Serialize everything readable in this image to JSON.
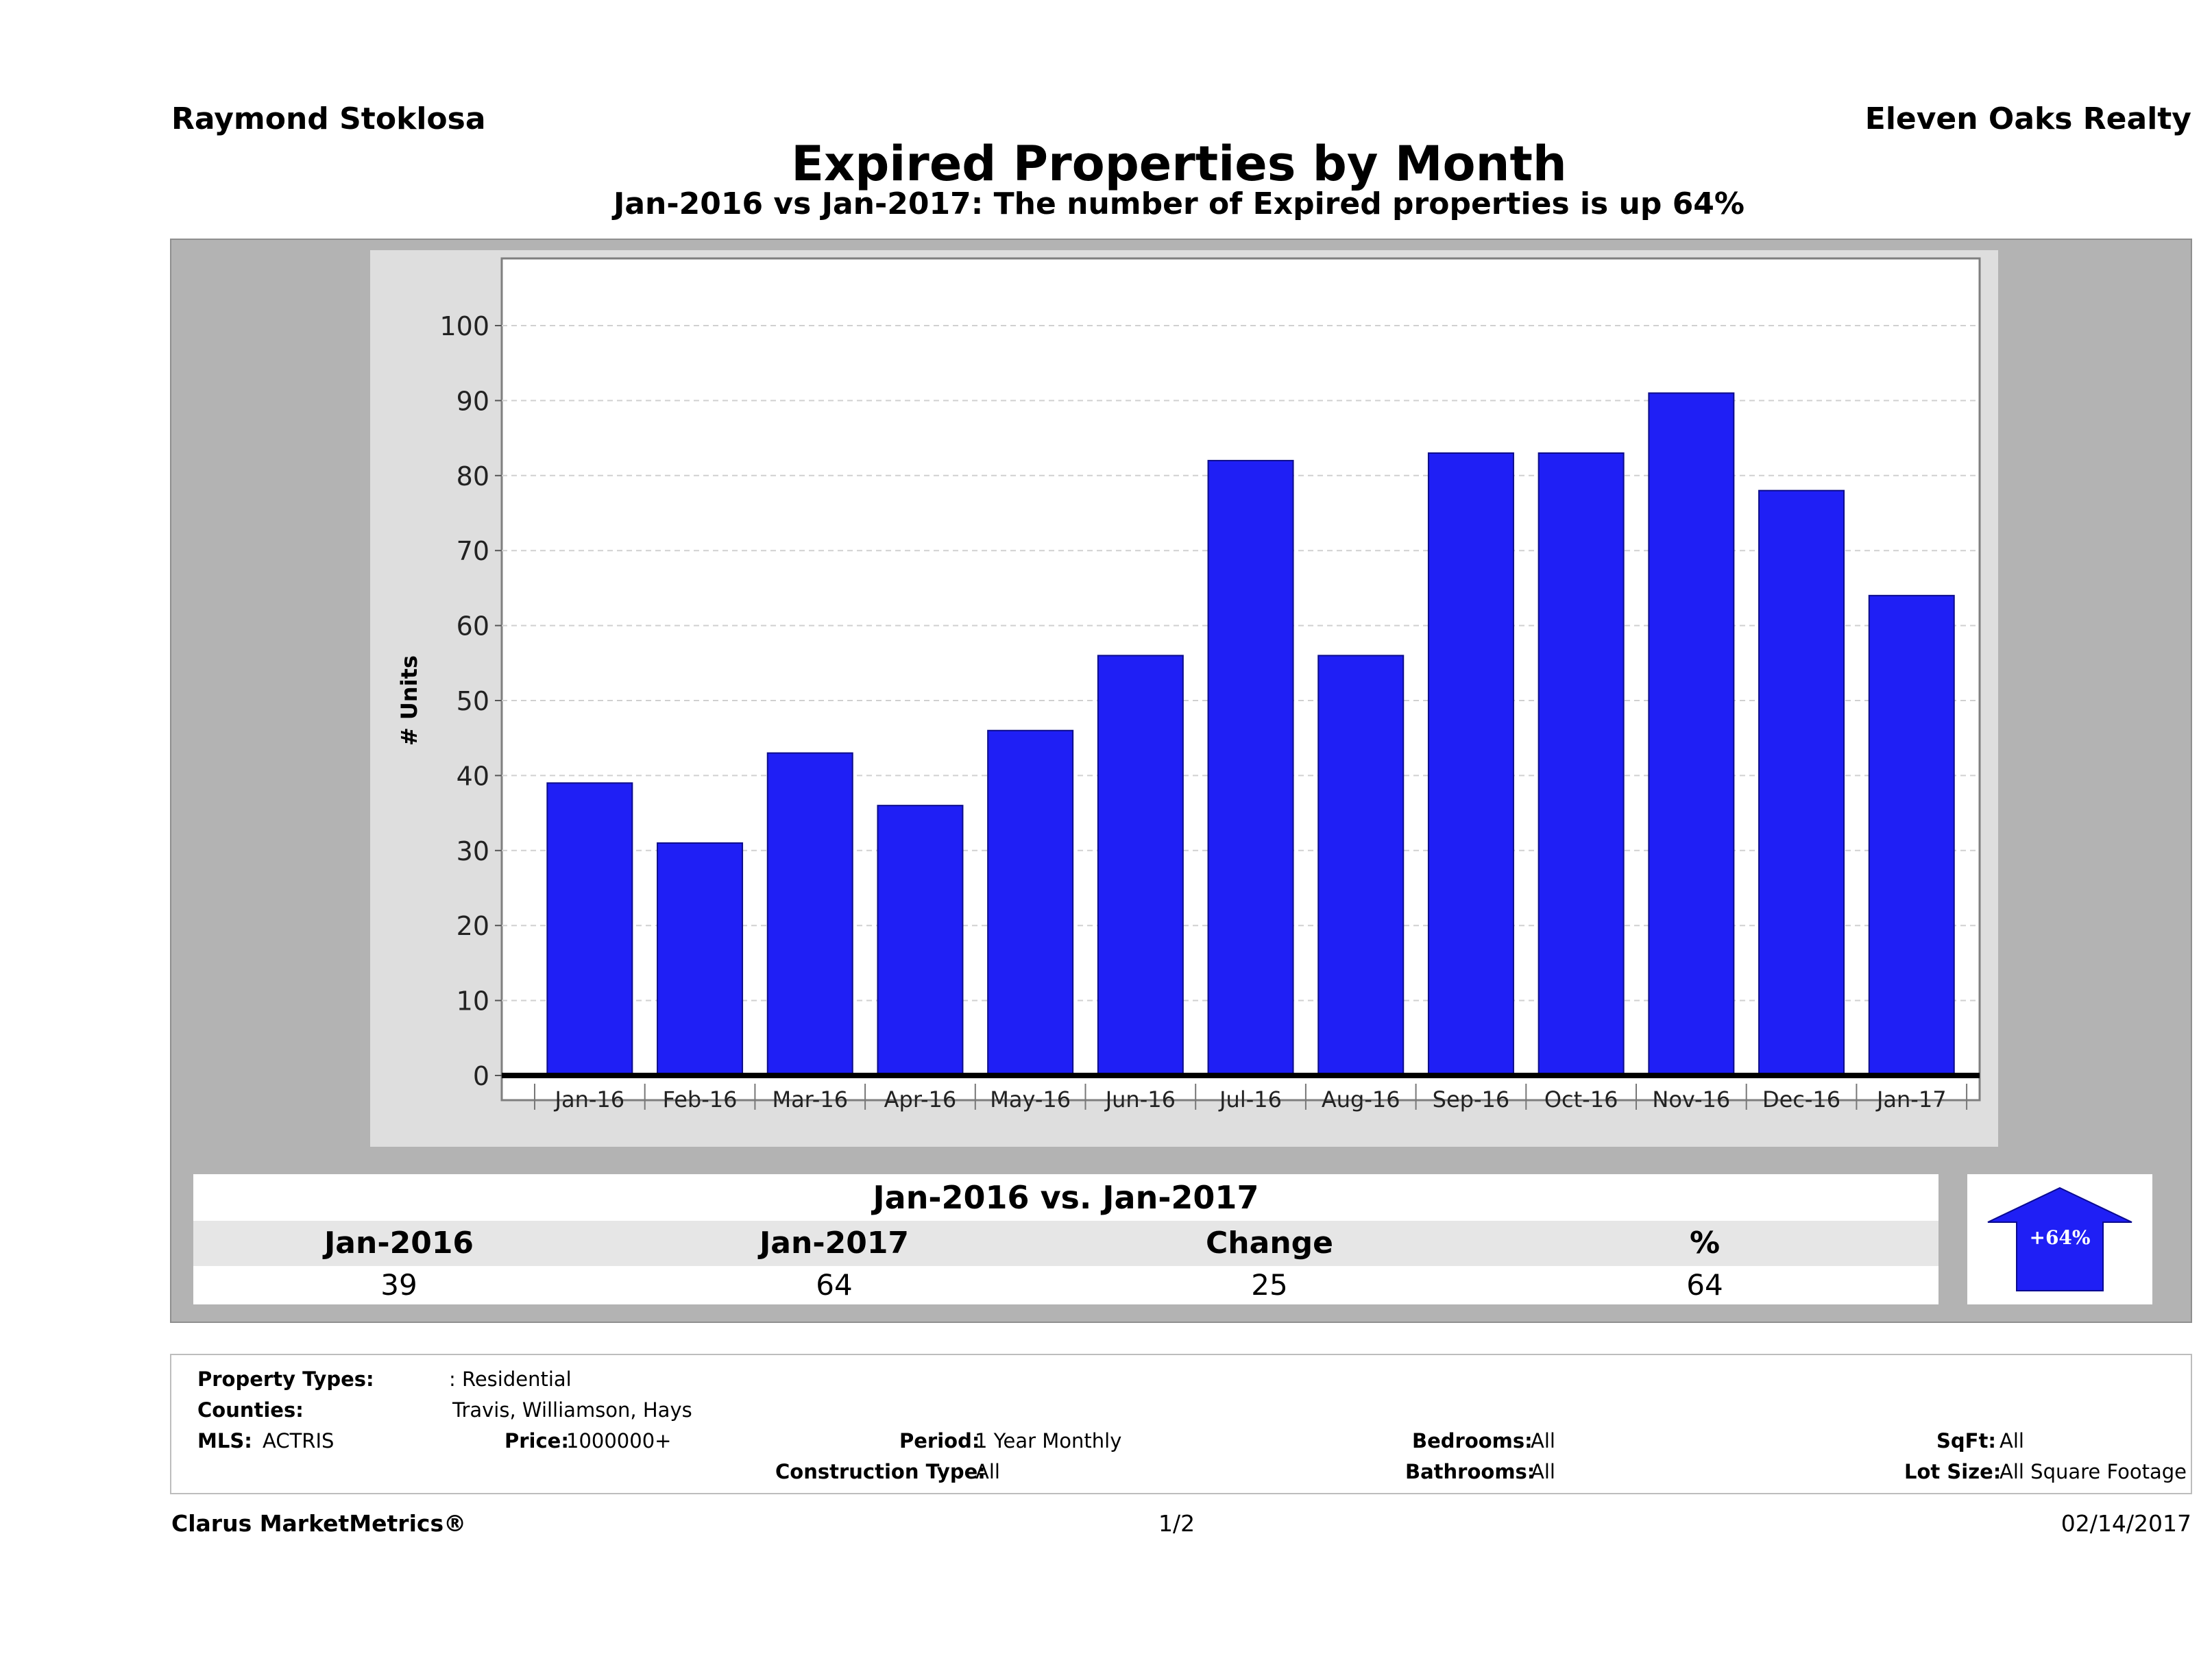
{
  "header": {
    "agent_name": "Raymond Stoklosa",
    "brokerage": "Eleven Oaks Realty"
  },
  "chart_data": {
    "type": "bar",
    "title": "Expired Properties by Month",
    "subtitle": "Jan-2016 vs Jan-2017: The number of Expired  properties is up 64%",
    "ylabel": "# Units",
    "xlabel": "",
    "ylim": [
      0,
      100
    ],
    "yticks": [
      0,
      10,
      20,
      30,
      40,
      50,
      60,
      70,
      80,
      90,
      100
    ],
    "grid": true,
    "bar_color": "#1f1ff5",
    "categories": [
      "Jan-16",
      "Feb-16",
      "Mar-16",
      "Apr-16",
      "May-16",
      "Jun-16",
      "Jul-16",
      "Aug-16",
      "Sep-16",
      "Oct-16",
      "Nov-16",
      "Dec-16",
      "Jan-17"
    ],
    "values": [
      39,
      31,
      43,
      36,
      46,
      56,
      82,
      56,
      83,
      83,
      91,
      78,
      64
    ]
  },
  "comparison": {
    "heading": "Jan-2016 vs. Jan-2017",
    "columns": [
      {
        "label": "Jan-2016",
        "value": "39"
      },
      {
        "label": "Jan-2017",
        "value": "64"
      },
      {
        "label": "Change",
        "value": "25"
      },
      {
        "label": "%",
        "value": "64"
      }
    ],
    "badge": "+64%",
    "badge_color": "#1f1ff5"
  },
  "details": {
    "property_types_label": "Property Types:",
    "property_types_value": ": Residential",
    "counties_label": "Counties:",
    "counties_value": "Travis, Williamson, Hays",
    "mls_label": "MLS:",
    "mls_value": "ACTRIS",
    "price_label": "Price:",
    "price_value": "1000000+",
    "period_label": "Period:",
    "period_value": "1 Year Monthly",
    "construction_label": "Construction Type:",
    "construction_value": "All",
    "bedrooms_label": "Bedrooms:",
    "bedrooms_value": "All",
    "bathrooms_label": "Bathrooms:",
    "bathrooms_value": "All",
    "sqft_label": "SqFt:",
    "sqft_value": "All",
    "lotsize_label": "Lot Size:",
    "lotsize_value": "All Square Footage"
  },
  "footer": {
    "provider": "Clarus MarketMetrics®",
    "page": "1/2",
    "date": "02/14/2017"
  }
}
